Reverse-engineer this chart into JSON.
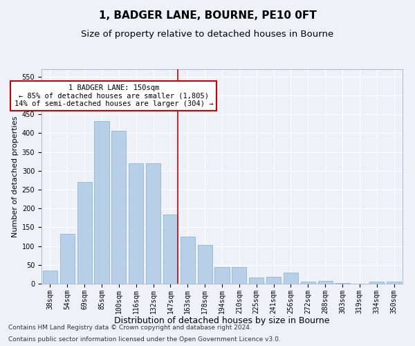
{
  "title": "1, BADGER LANE, BOURNE, PE10 0FT",
  "subtitle": "Size of property relative to detached houses in Bourne",
  "xlabel": "Distribution of detached houses by size in Bourne",
  "ylabel": "Number of detached properties",
  "categories": [
    "38sqm",
    "54sqm",
    "69sqm",
    "85sqm",
    "100sqm",
    "116sqm",
    "132sqm",
    "147sqm",
    "163sqm",
    "178sqm",
    "194sqm",
    "210sqm",
    "225sqm",
    "241sqm",
    "256sqm",
    "272sqm",
    "288sqm",
    "303sqm",
    "319sqm",
    "334sqm",
    "350sqm"
  ],
  "values": [
    35,
    133,
    270,
    433,
    406,
    320,
    320,
    183,
    125,
    103,
    45,
    45,
    17,
    18,
    30,
    5,
    7,
    2,
    0,
    5,
    5
  ],
  "bar_color": "#b8cfe8",
  "bar_edge_color": "#7fafd4",
  "vline_index": 7,
  "annotation_line1": "1 BADGER LANE: 150sqm",
  "annotation_line2": "← 85% of detached houses are smaller (1,805)",
  "annotation_line3": "14% of semi-detached houses are larger (304) →",
  "annotation_box_color": "#ffffff",
  "annotation_box_edge_color": "#cc0000",
  "vline_color": "#cc0000",
  "ylim": [
    0,
    570
  ],
  "yticks": [
    0,
    50,
    100,
    150,
    200,
    250,
    300,
    350,
    400,
    450,
    500,
    550
  ],
  "background_color": "#eef2f8",
  "grid_color": "#ffffff",
  "footer_line1": "Contains HM Land Registry data © Crown copyright and database right 2024.",
  "footer_line2": "Contains public sector information licensed under the Open Government Licence v3.0.",
  "title_fontsize": 11,
  "subtitle_fontsize": 9.5,
  "xlabel_fontsize": 9,
  "ylabel_fontsize": 8,
  "tick_fontsize": 7,
  "annotation_fontsize": 7.5,
  "footer_fontsize": 6.5
}
